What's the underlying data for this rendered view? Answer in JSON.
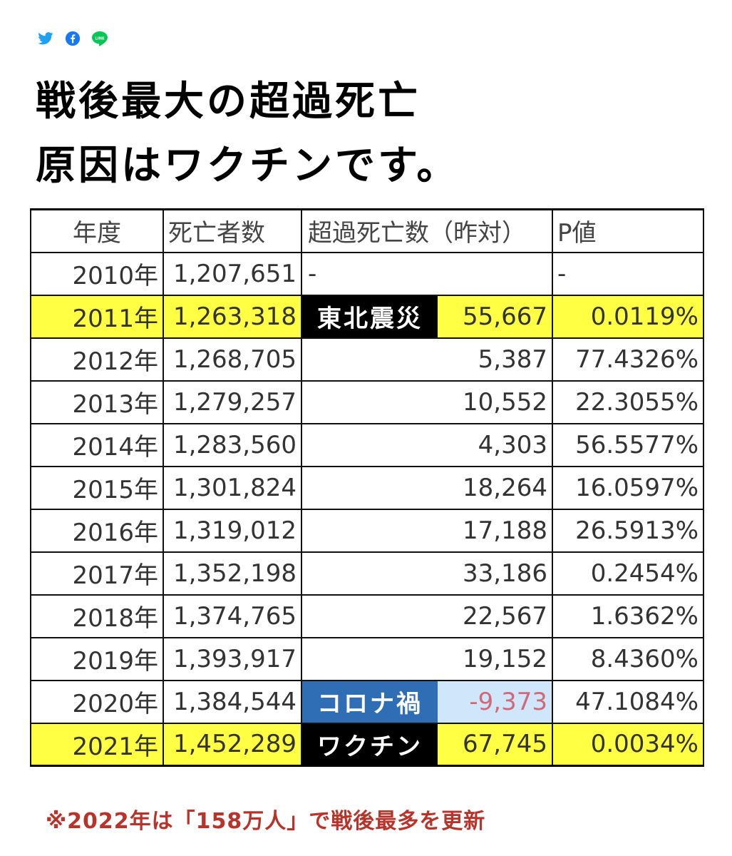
{
  "share": {
    "icons": [
      "twitter-icon",
      "facebook-icon",
      "line-icon"
    ],
    "line_text": "LINE"
  },
  "title": {
    "line1": "戦後最大の超過死亡",
    "line2": "原因はワクチンです。"
  },
  "table": {
    "headers": [
      "年度",
      "死亡者数",
      "超過死亡数（昨対）",
      "P値"
    ],
    "rows": [
      {
        "year": "2010年",
        "deaths": "1,207,651",
        "label": "-",
        "excess": "",
        "p": "-"
      },
      {
        "year": "2011年",
        "deaths": "1,263,318",
        "label": "東北震災",
        "excess": "55,667",
        "p": "0.0119%"
      },
      {
        "year": "2012年",
        "deaths": "1,268,705",
        "label": "",
        "excess": "5,387",
        "p": "77.4326%"
      },
      {
        "year": "2013年",
        "deaths": "1,279,257",
        "label": "",
        "excess": "10,552",
        "p": "22.3055%"
      },
      {
        "year": "2014年",
        "deaths": "1,283,560",
        "label": "",
        "excess": "4,303",
        "p": "56.5577%"
      },
      {
        "year": "2015年",
        "deaths": "1,301,824",
        "label": "",
        "excess": "18,264",
        "p": "16.0597%"
      },
      {
        "year": "2016年",
        "deaths": "1,319,012",
        "label": "",
        "excess": "17,188",
        "p": "26.5913%"
      },
      {
        "year": "2017年",
        "deaths": "1,352,198",
        "label": "",
        "excess": "33,186",
        "p": "0.2454%"
      },
      {
        "year": "2018年",
        "deaths": "1,374,765",
        "label": "",
        "excess": "22,567",
        "p": "1.6362%"
      },
      {
        "year": "2019年",
        "deaths": "1,393,917",
        "label": "",
        "excess": "19,152",
        "p": "8.4360%"
      },
      {
        "year": "2020年",
        "deaths": "1,384,544",
        "label": "コロナ禍",
        "excess": "-9,373",
        "p": "47.1084%"
      },
      {
        "year": "2021年",
        "deaths": "1,452,289",
        "label": "ワクチン",
        "excess": "67,745",
        "p": "0.0034%"
      }
    ]
  },
  "note": "※2022年は「158万人」で戦後最多を更新",
  "colors": {
    "highlight": "#ffff44",
    "label_black": "#000000",
    "label_blue": "#2f6db5",
    "negative_bg": "#cfe6fb",
    "negative_text": "#d06a78",
    "note": "#b8342b",
    "twitter": "#1da1f2",
    "facebook": "#1877f2",
    "line": "#06c755"
  }
}
